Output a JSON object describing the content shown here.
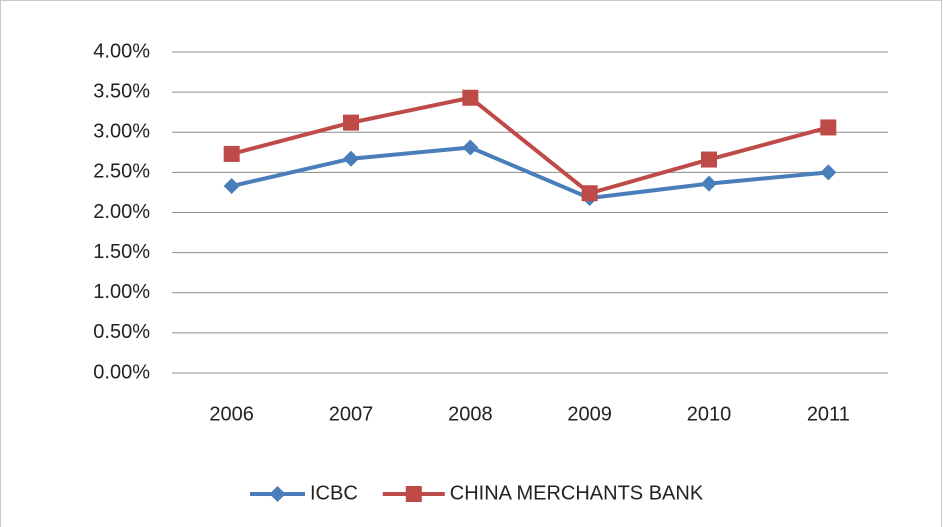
{
  "chart_data": {
    "type": "line",
    "categories": [
      "2006",
      "2007",
      "2008",
      "2009",
      "2010",
      "2011"
    ],
    "series": [
      {
        "name": "ICBC",
        "color": "#4a7ebb",
        "marker": "diamond",
        "values": [
          2.33,
          2.67,
          2.81,
          2.18,
          2.36,
          2.5
        ]
      },
      {
        "name": "CHINA MERCHANTS BANK",
        "color": "#be4b48",
        "marker": "square",
        "values": [
          2.73,
          3.12,
          3.43,
          2.24,
          2.66,
          3.06
        ]
      }
    ],
    "ylim": [
      0,
      4
    ],
    "yticks": [
      {
        "value": 0,
        "label": "0.00%"
      },
      {
        "value": 0.5,
        "label": "0.50%"
      },
      {
        "value": 1,
        "label": "1.00%"
      },
      {
        "value": 1.5,
        "label": "1.50%"
      },
      {
        "value": 2,
        "label": "2.00%"
      },
      {
        "value": 2.5,
        "label": "2.50%"
      },
      {
        "value": 3,
        "label": "3.00%"
      },
      {
        "value": 3.5,
        "label": "3.50%"
      },
      {
        "value": 4,
        "label": "4.00%"
      }
    ],
    "grid": true,
    "legend": "bottom"
  }
}
